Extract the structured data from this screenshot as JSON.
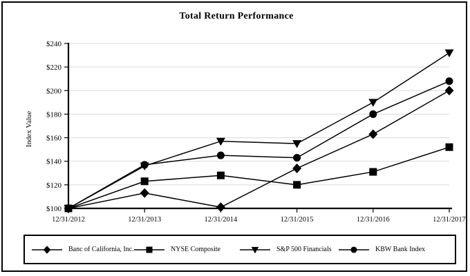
{
  "colors": {
    "line": "#000000",
    "grid": "#d9d9d9",
    "background": "#ffffff",
    "border": "#000000"
  },
  "chart_data": {
    "type": "line",
    "title": "Total Return Performance",
    "xlabel": "",
    "ylabel": "Index Value",
    "categories": [
      "12/31/2012",
      "12/31/2013",
      "12/31/2014",
      "12/31/2015",
      "12/31/2016",
      "12/31/2017"
    ],
    "series": [
      {
        "name": "Banc of California, Inc.",
        "marker": "diamond",
        "values": [
          100,
          113,
          101,
          134,
          163,
          200
        ]
      },
      {
        "name": "NYSE Composite",
        "marker": "square",
        "values": [
          100,
          123,
          128,
          120,
          131,
          152
        ]
      },
      {
        "name": "S&P 500 Financials",
        "marker": "triangle-down",
        "values": [
          100,
          136,
          157,
          155,
          190,
          232
        ]
      },
      {
        "name": "KBW Bank Index",
        "marker": "circle",
        "values": [
          100,
          137,
          145,
          143,
          180,
          208
        ]
      }
    ],
    "ylim": [
      100,
      240
    ],
    "ytick_step": 20,
    "ytick_prefix": "$",
    "grid": true,
    "legend_position": "bottom"
  }
}
